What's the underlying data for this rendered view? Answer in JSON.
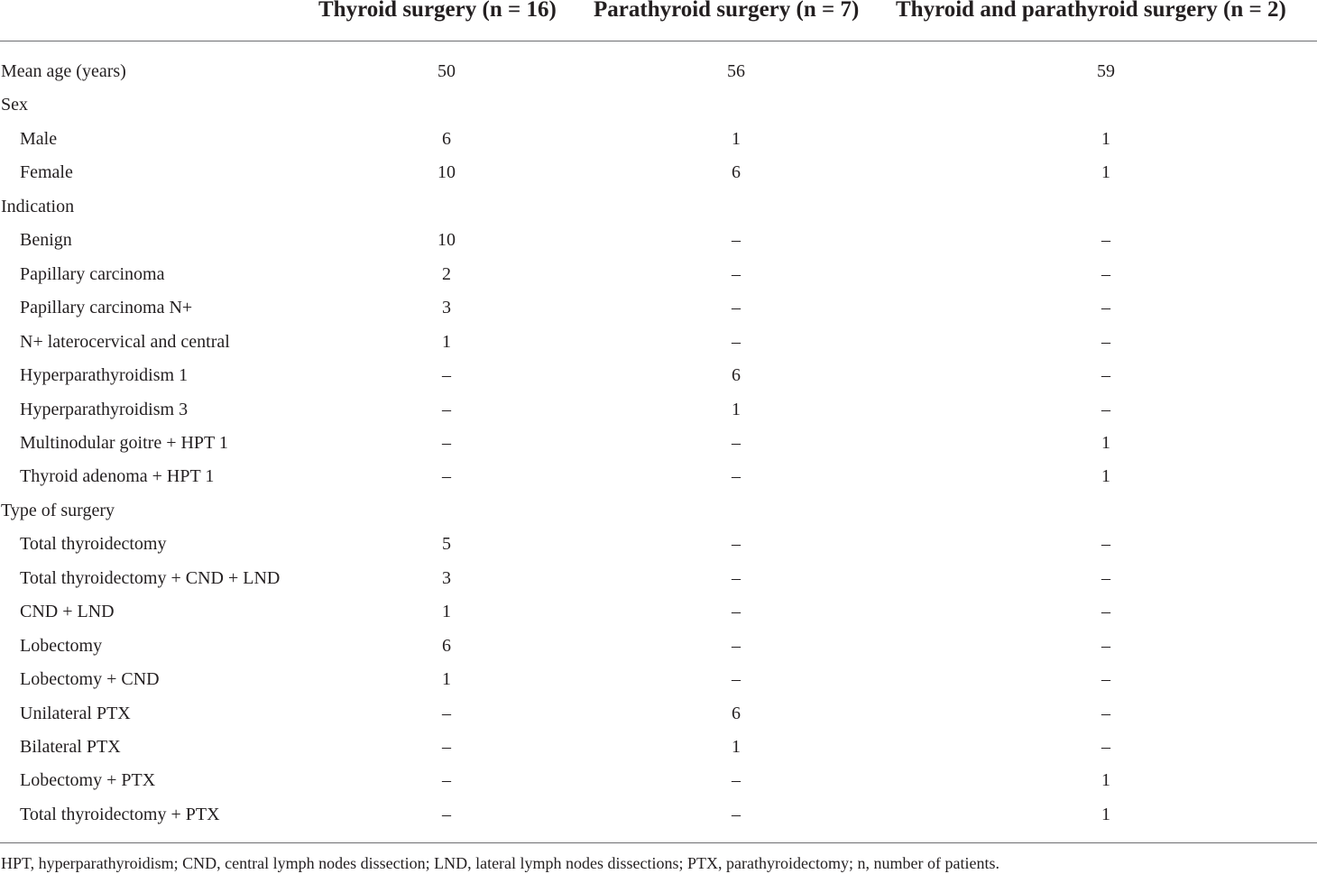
{
  "table": {
    "headers": [
      "",
      "Thyroid surgery (n = 16)",
      "Parathyroid surgery (n = 7)",
      "Thyroid and parathyroid surgery (n = 2)"
    ],
    "rows": [
      {
        "label": "Mean age (years)",
        "indent": false,
        "values": [
          "50",
          "56",
          "59"
        ]
      },
      {
        "label": "Sex",
        "indent": false,
        "values": [
          "",
          "",
          ""
        ]
      },
      {
        "label": "Male",
        "indent": true,
        "values": [
          "6",
          "1",
          "1"
        ]
      },
      {
        "label": "Female",
        "indent": true,
        "values": [
          "10",
          "6",
          "1"
        ]
      },
      {
        "label": "Indication",
        "indent": false,
        "values": [
          "",
          "",
          ""
        ]
      },
      {
        "label": "Benign",
        "indent": true,
        "values": [
          "10",
          "–",
          "–"
        ]
      },
      {
        "label": "Papillary carcinoma",
        "indent": true,
        "values": [
          "2",
          "–",
          "–"
        ]
      },
      {
        "label": "Papillary carcinoma N+",
        "indent": true,
        "values": [
          "3",
          "–",
          "–"
        ]
      },
      {
        "label": "N+ laterocervical and central",
        "indent": true,
        "values": [
          "1",
          "–",
          "–"
        ]
      },
      {
        "label": "Hyperparathyroidism 1",
        "indent": true,
        "values": [
          "–",
          "6",
          "–"
        ]
      },
      {
        "label": "Hyperparathyroidism 3",
        "indent": true,
        "values": [
          "–",
          "1",
          "–"
        ]
      },
      {
        "label": "Multinodular goitre + HPT 1",
        "indent": true,
        "values": [
          "–",
          "–",
          "1"
        ]
      },
      {
        "label": "Thyroid adenoma + HPT 1",
        "indent": true,
        "values": [
          "–",
          "–",
          "1"
        ]
      },
      {
        "label": "Type of surgery",
        "indent": false,
        "values": [
          "",
          "",
          ""
        ]
      },
      {
        "label": "Total thyroidectomy",
        "indent": true,
        "values": [
          "5",
          "–",
          "–"
        ]
      },
      {
        "label": "Total thyroidectomy + CND + LND",
        "indent": true,
        "values": [
          "3",
          "–",
          "–"
        ]
      },
      {
        "label": "CND + LND",
        "indent": true,
        "values": [
          "1",
          "–",
          "–"
        ]
      },
      {
        "label": "Lobectomy",
        "indent": true,
        "values": [
          "6",
          "–",
          "–"
        ]
      },
      {
        "label": "Lobectomy + CND",
        "indent": true,
        "values": [
          "1",
          "–",
          "–"
        ]
      },
      {
        "label": "Unilateral PTX",
        "indent": true,
        "values": [
          "–",
          "6",
          "–"
        ]
      },
      {
        "label": "Bilateral PTX",
        "indent": true,
        "values": [
          "–",
          "1",
          "–"
        ]
      },
      {
        "label": "Lobectomy + PTX",
        "indent": true,
        "values": [
          "–",
          "–",
          "1"
        ]
      },
      {
        "label": "Total thyroidectomy + PTX",
        "indent": true,
        "values": [
          "–",
          "–",
          "1"
        ]
      }
    ],
    "footnote": "HPT, hyperparathyroidism; CND, central lymph nodes dissection; LND, lateral lymph nodes dissections; PTX, parathyroidectomy; n, number of patients."
  }
}
